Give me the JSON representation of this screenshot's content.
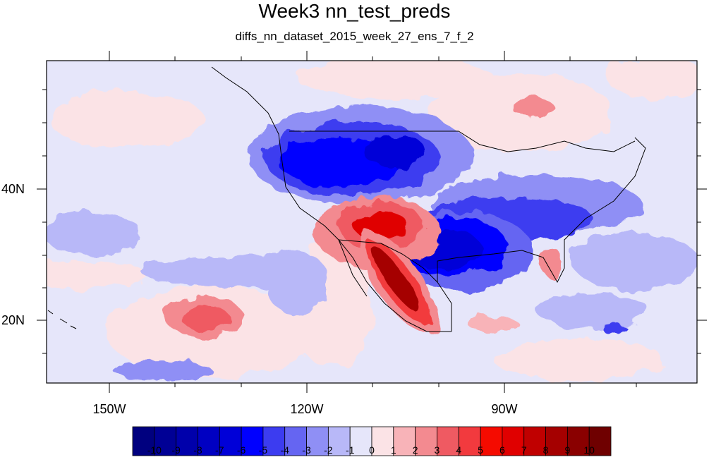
{
  "title": "Week3 nn_test_preds",
  "subtitle": "diffs_nn_dataset_2015_week_27_ens_7_f_2",
  "map": {
    "projection": "cylindrical-equidistant",
    "lon_range": [
      -159.5,
      -61
    ],
    "lat_range": [
      10,
      59
    ],
    "lon_labels": [
      "150W",
      "120W",
      "90W"
    ],
    "lat_labels": [
      "40N",
      "20N"
    ],
    "background_class": "-1 to 0",
    "anomaly_regions": [
      {
        "name": "northwest-us-negative",
        "level": -6
      },
      {
        "name": "southern-plains-negative",
        "level": -6
      },
      {
        "name": "southwest-positive",
        "level": 9
      },
      {
        "name": "baja-mexico-positive",
        "level": 8
      },
      {
        "name": "east-pacific-positive",
        "level": 4
      },
      {
        "name": "hudson-positive",
        "level": 3
      }
    ]
  },
  "colorbar": {
    "labels": [
      "-10",
      "-9",
      "-8",
      "-7",
      "-6",
      "-5",
      "-4",
      "-3",
      "-2",
      "-1",
      "0",
      "1",
      "2",
      "3",
      "4",
      "5",
      "6",
      "7",
      "8",
      "9",
      "10"
    ],
    "colors": [
      "#00007f",
      "#000095",
      "#0000ab",
      "#0000c2",
      "#0000d8",
      "#0000ff",
      "#3c3cf0",
      "#6565f2",
      "#8f8ff5",
      "#b8b8f8",
      "#e6e6fa",
      "#fbe3e6",
      "#f8b3b8",
      "#f38a90",
      "#ef5a62",
      "#f23a3e",
      "#f50b00",
      "#e00000",
      "#c00000",
      "#a50000",
      "#8a0000",
      "#6f0000"
    ]
  }
}
